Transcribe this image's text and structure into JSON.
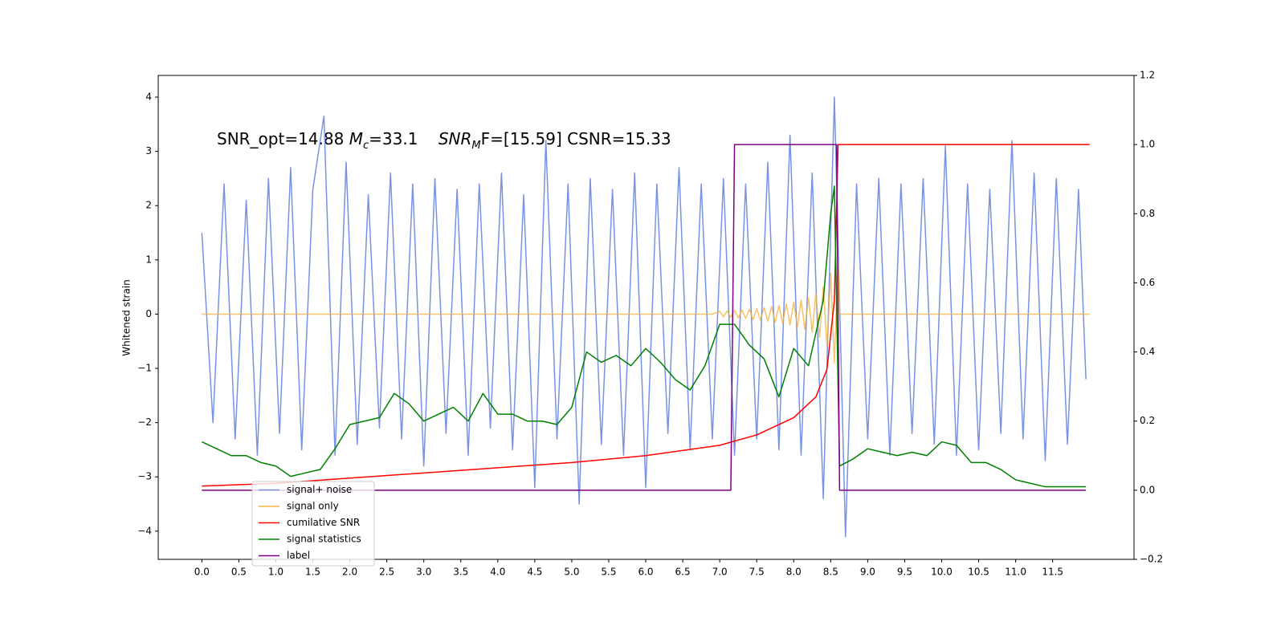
{
  "chart_data": {
    "type": "line",
    "annotation": [
      "SNR_opt=14.88 ",
      "M",
      "c",
      "=33.1    ",
      "SNR",
      "M",
      "F=[15.59] CSNR=15.33"
    ],
    "ylabel": "Whitened strain",
    "xlim": [
      -0.59,
      12.6
    ],
    "ylim": [
      -4.52,
      4.4
    ],
    "y2lim": [
      -0.2,
      1.2
    ],
    "xticks": [
      {
        "value": 0,
        "label": "0.0"
      },
      {
        "value": 0.5,
        "label": "0.5"
      },
      {
        "value": 1,
        "label": "1.0"
      },
      {
        "value": 1.5,
        "label": "1.5"
      },
      {
        "value": 2,
        "label": "2.0"
      },
      {
        "value": 2.5,
        "label": "2.5"
      },
      {
        "value": 3,
        "label": "3.0"
      },
      {
        "value": 3.5,
        "label": "3.5"
      },
      {
        "value": 4,
        "label": "4.0"
      },
      {
        "value": 4.5,
        "label": "4.5"
      },
      {
        "value": 5,
        "label": "5.0"
      },
      {
        "value": 5.5,
        "label": "5.5"
      },
      {
        "value": 6,
        "label": "6.0"
      },
      {
        "value": 6.5,
        "label": "6.5"
      },
      {
        "value": 7,
        "label": "7.0"
      },
      {
        "value": 7.5,
        "label": "7.5"
      },
      {
        "value": 8,
        "label": "8.0"
      },
      {
        "value": 8.5,
        "label": "8.5"
      },
      {
        "value": 9,
        "label": "9.0"
      },
      {
        "value": 9.5,
        "label": "9.5"
      },
      {
        "value": 10,
        "label": "10.0"
      },
      {
        "value": 10.5,
        "label": "10.5"
      },
      {
        "value": 11,
        "label": "11.0"
      },
      {
        "value": 11.5,
        "label": "11.5"
      }
    ],
    "yticks": [
      {
        "value": -4,
        "label": "−4"
      },
      {
        "value": -3,
        "label": "−3"
      },
      {
        "value": -2,
        "label": "−2"
      },
      {
        "value": -1,
        "label": "−1"
      },
      0,
      1,
      2,
      3,
      4
    ],
    "y2ticks": [
      {
        "value": -0.2,
        "label": "−0.2"
      },
      {
        "value": 0,
        "label": "0.0"
      },
      {
        "value": 0.2,
        "label": "0.2"
      },
      {
        "value": 0.4,
        "label": "0.4"
      },
      {
        "value": 0.6,
        "label": "0.6"
      },
      {
        "value": 0.8,
        "label": "0.8"
      },
      {
        "value": 1,
        "label": "1.0"
      },
      {
        "value": 1.2,
        "label": "1.2"
      }
    ],
    "legend": "lower left",
    "series": [
      {
        "name": "signal+ noise",
        "color": "#7893e6",
        "x": [
          0,
          0.15,
          0.3,
          0.45,
          0.6,
          0.75,
          0.9,
          1.05,
          1.2,
          1.35,
          1.5,
          1.65,
          1.8,
          1.95,
          2.1,
          2.25,
          2.4,
          2.55,
          2.7,
          2.85,
          3.0,
          3.15,
          3.3,
          3.45,
          3.6,
          3.75,
          3.9,
          4.05,
          4.2,
          4.35,
          4.5,
          4.65,
          4.8,
          4.95,
          5.1,
          5.25,
          5.4,
          5.55,
          5.7,
          5.85,
          6.0,
          6.15,
          6.3,
          6.45,
          6.6,
          6.75,
          6.9,
          7.05,
          7.2,
          7.35,
          7.5,
          7.65,
          7.8,
          7.95,
          8.1,
          8.25,
          8.4,
          8.55,
          8.7,
          8.85,
          9.0,
          9.15,
          9.3,
          9.45,
          9.6,
          9.75,
          9.9,
          10.05,
          10.2,
          10.35,
          10.5,
          10.65,
          10.8,
          10.95,
          11.1,
          11.25,
          11.4,
          11.55,
          11.7,
          11.85,
          11.95
        ],
        "values": [
          1.5,
          -2.0,
          2.4,
          -2.3,
          2.1,
          -2.6,
          2.5,
          -2.2,
          2.7,
          -2.5,
          2.3,
          3.65,
          -2.6,
          2.8,
          -2.4,
          2.2,
          -2.1,
          2.6,
          -2.3,
          2.4,
          -2.8,
          2.5,
          -2.2,
          2.3,
          -2.6,
          2.4,
          -2.1,
          2.6,
          -2.5,
          2.2,
          -3.2,
          3.2,
          -2.3,
          2.4,
          -3.5,
          2.5,
          -2.4,
          2.3,
          -2.6,
          2.6,
          -3.2,
          2.4,
          -2.2,
          2.7,
          -2.5,
          2.4,
          -2.3,
          2.5,
          -2.6,
          2.4,
          -2.3,
          2.8,
          -2.5,
          3.3,
          -2.6,
          2.6,
          -3.4,
          4.0,
          -4.1,
          2.4,
          -2.3,
          2.5,
          -2.6,
          2.4,
          -2.2,
          2.5,
          -2.4,
          3.1,
          -2.6,
          2.4,
          -2.5,
          2.3,
          -2.2,
          3.2,
          -2.3,
          2.6,
          -2.7,
          2.5,
          -2.4,
          2.3,
          -1.2
        ]
      },
      {
        "name": "signal only",
        "color": "#f5b342",
        "x": [
          0,
          6.9,
          7.0,
          7.05,
          7.1,
          7.15,
          7.2,
          7.25,
          7.3,
          7.35,
          7.4,
          7.45,
          7.5,
          7.55,
          7.6,
          7.65,
          7.7,
          7.75,
          7.8,
          7.85,
          7.9,
          7.95,
          8.0,
          8.05,
          8.1,
          8.15,
          8.2,
          8.25,
          8.3,
          8.35,
          8.4,
          8.45,
          8.5,
          8.55,
          8.6,
          8.62,
          12.0
        ],
        "values": [
          0,
          0,
          0.05,
          -0.05,
          0.06,
          -0.06,
          0.07,
          -0.07,
          0.08,
          -0.08,
          0.09,
          -0.1,
          0.1,
          -0.11,
          0.12,
          -0.13,
          0.14,
          -0.15,
          0.16,
          -0.17,
          0.19,
          -0.2,
          0.22,
          -0.24,
          0.26,
          -0.28,
          0.3,
          -0.34,
          0.38,
          -0.43,
          0.5,
          -0.6,
          0.75,
          -0.9,
          1.0,
          0,
          0
        ]
      },
      {
        "name": "cumilative SNR",
        "color": "#ff0000",
        "axis": "y2",
        "x": [
          0,
          1,
          2,
          3,
          4,
          5,
          6,
          7,
          7.5,
          8,
          8.3,
          8.45,
          8.55,
          8.6,
          12.0
        ],
        "values": [
          0.012,
          0.02,
          0.035,
          0.05,
          0.065,
          0.08,
          0.1,
          0.13,
          0.16,
          0.21,
          0.27,
          0.35,
          0.55,
          1.0,
          1.0
        ]
      },
      {
        "name": "signal statistics",
        "color": "#008000",
        "axis": "y2",
        "x": [
          0,
          0.2,
          0.4,
          0.6,
          0.8,
          1.0,
          1.2,
          1.4,
          1.6,
          1.8,
          2.0,
          2.2,
          2.4,
          2.6,
          2.8,
          3.0,
          3.2,
          3.4,
          3.6,
          3.8,
          4.0,
          4.2,
          4.4,
          4.6,
          4.8,
          5.0,
          5.2,
          5.4,
          5.6,
          5.8,
          6.0,
          6.2,
          6.4,
          6.6,
          6.8,
          7.0,
          7.2,
          7.4,
          7.6,
          7.8,
          8.0,
          8.2,
          8.4,
          8.5,
          8.55,
          8.62,
          8.8,
          9.0,
          9.2,
          9.4,
          9.6,
          9.8,
          10.0,
          10.2,
          10.4,
          10.6,
          10.8,
          11.0,
          11.2,
          11.4,
          11.6,
          11.95
        ],
        "values": [
          0.14,
          0.12,
          0.1,
          0.1,
          0.08,
          0.07,
          0.04,
          0.05,
          0.06,
          0.12,
          0.19,
          0.2,
          0.21,
          0.28,
          0.25,
          0.2,
          0.22,
          0.24,
          0.2,
          0.28,
          0.22,
          0.22,
          0.2,
          0.2,
          0.19,
          0.24,
          0.4,
          0.37,
          0.39,
          0.36,
          0.41,
          0.37,
          0.32,
          0.29,
          0.36,
          0.48,
          0.48,
          0.42,
          0.38,
          0.27,
          0.41,
          0.36,
          0.55,
          0.8,
          0.88,
          0.07,
          0.09,
          0.12,
          0.11,
          0.1,
          0.11,
          0.1,
          0.14,
          0.13,
          0.08,
          0.08,
          0.06,
          0.03,
          0.02,
          0.01,
          0.01,
          0.01
        ]
      },
      {
        "name": "label",
        "color": "#800080",
        "axis": "y2",
        "x": [
          0,
          7.15,
          7.2,
          8.58,
          8.62,
          11.95
        ],
        "values": [
          0,
          0,
          1,
          1,
          0,
          0
        ]
      }
    ]
  }
}
